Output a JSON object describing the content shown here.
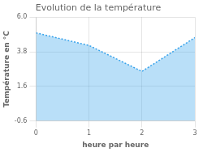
{
  "chart_data": {
    "type": "area",
    "title": "Evolution de la température",
    "x_label": "heure par heure",
    "y_label": "Température en °C",
    "x": [
      0,
      1,
      2,
      3
    ],
    "values": [
      5.0,
      4.2,
      2.55,
      4.7
    ],
    "xlim": [
      0,
      3
    ],
    "xticks": [
      0,
      1,
      2,
      3
    ],
    "ylim": [
      -0.6,
      6.0
    ],
    "yticks": [
      -0.6,
      1.6,
      3.8,
      {
        "value": 6.0,
        "label": "6.0"
      }
    ],
    "line_style": "dotted",
    "grid": true
  }
}
